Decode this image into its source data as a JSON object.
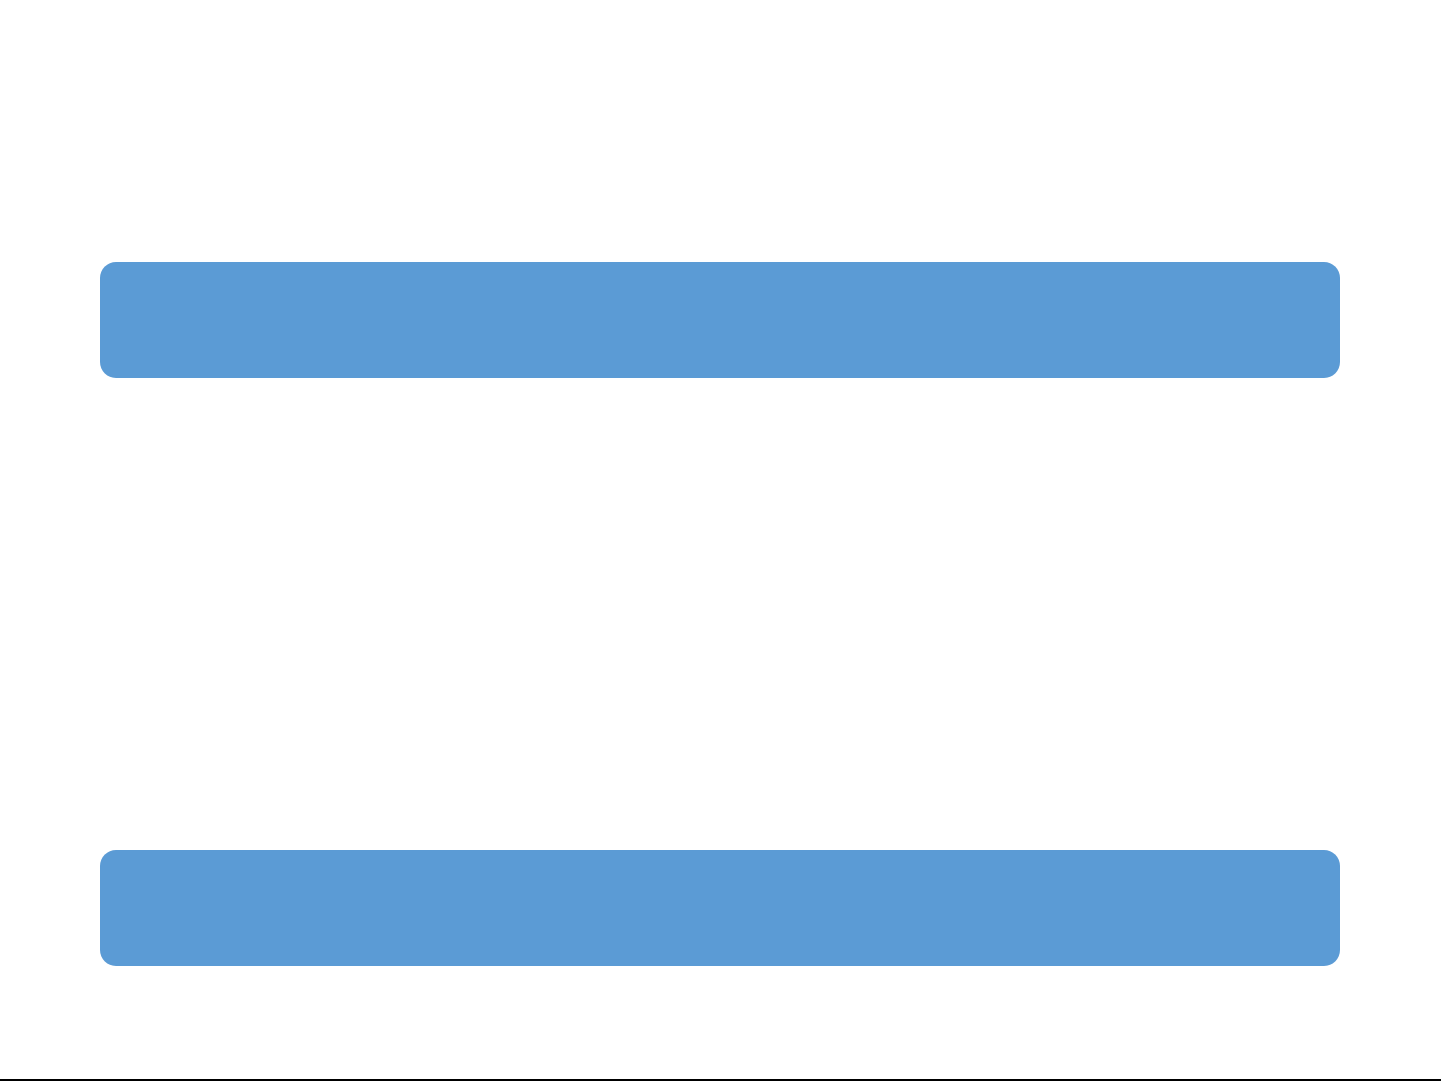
{
  "colors": {
    "bar": "#5b9bd5",
    "background": "#ffffff",
    "bottom_line": "#000000"
  },
  "bars": [
    {
      "label": ""
    },
    {
      "label": ""
    }
  ]
}
